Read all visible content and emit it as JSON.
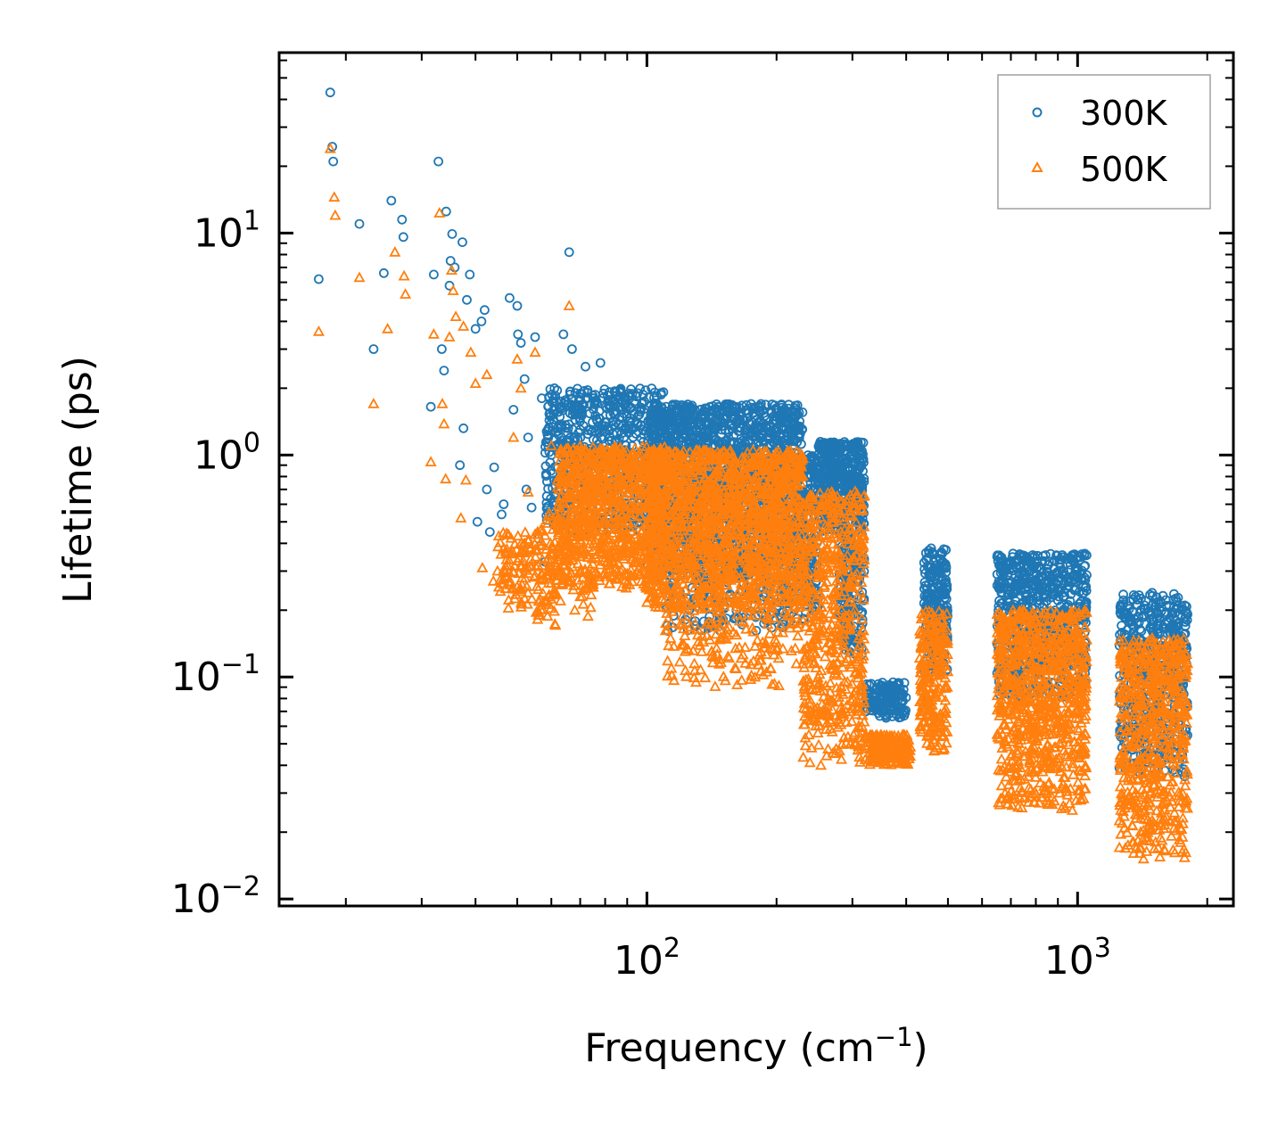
{
  "chart_data": {
    "type": "scatter",
    "xscale": "log",
    "yscale": "log",
    "xlabel": "Frequency (cm",
    "xlabel_sup": "−1",
    "xlabel_end": ")",
    "ylabel": "Lifetime (ps)",
    "xlim": [
      14,
      2300
    ],
    "ylim": [
      0.0093,
      65
    ],
    "x_ticks": [
      {
        "value": 100,
        "base": "10",
        "exp": "2"
      },
      {
        "value": 1000,
        "base": "10",
        "exp": "3"
      }
    ],
    "y_ticks": [
      {
        "value": 0.01,
        "base": "10",
        "exp": "−2"
      },
      {
        "value": 0.1,
        "base": "10",
        "exp": "−1"
      },
      {
        "value": 1,
        "base": "10",
        "exp": "0"
      },
      {
        "value": 10,
        "base": "10",
        "exp": "1"
      }
    ],
    "legend": {
      "position": "top-right"
    },
    "series": [
      {
        "name": "300K",
        "marker": "circle",
        "color": "#1f77b4",
        "points": [
          [
            17.3,
            6.2
          ],
          [
            18.4,
            43
          ],
          [
            18.6,
            24.5
          ],
          [
            18.7,
            21
          ],
          [
            21.5,
            11
          ],
          [
            23.2,
            3.0
          ],
          [
            24.5,
            6.6
          ],
          [
            25.5,
            14
          ],
          [
            27,
            11.5
          ],
          [
            27.2,
            9.6
          ],
          [
            31.5,
            1.65
          ],
          [
            32,
            6.5
          ],
          [
            32.8,
            21
          ],
          [
            33.4,
            3.0
          ],
          [
            33.8,
            2.4
          ],
          [
            34.2,
            12.5
          ],
          [
            34.8,
            5.8
          ],
          [
            35,
            7.5
          ],
          [
            35.3,
            9.9
          ],
          [
            35.8,
            7.0
          ],
          [
            36.8,
            0.9
          ],
          [
            37.3,
            9.1
          ],
          [
            37.5,
            1.32
          ],
          [
            38.2,
            5.0
          ],
          [
            38.8,
            6.5
          ],
          [
            40,
            3.7
          ],
          [
            40.4,
            0.5
          ],
          [
            41.3,
            4.0
          ],
          [
            42,
            4.5
          ],
          [
            42.5,
            0.7
          ],
          [
            43.2,
            0.45
          ],
          [
            44.2,
            0.88
          ],
          [
            46,
            0.54
          ],
          [
            46.5,
            0.6
          ],
          [
            48,
            5.1
          ],
          [
            49,
            1.6
          ],
          [
            50,
            4.7
          ],
          [
            50.2,
            3.5
          ],
          [
            51,
            3.2
          ],
          [
            52,
            2.2
          ],
          [
            52.5,
            0.7
          ],
          [
            53,
            1.2
          ],
          [
            54,
            0.58
          ],
          [
            55,
            3.4
          ],
          [
            56,
            0.42
          ],
          [
            57,
            1.8
          ],
          [
            58,
            0.33
          ],
          [
            59,
            0.55
          ],
          [
            60,
            1.0
          ],
          [
            61,
            2.0
          ],
          [
            63,
            1.35
          ],
          [
            64,
            3.5
          ],
          [
            65,
            1.1
          ],
          [
            66,
            8.2
          ],
          [
            67,
            3.0
          ],
          [
            68,
            1.6
          ],
          [
            70,
            1.3
          ],
          [
            72,
            2.5
          ],
          [
            75,
            1.8
          ],
          [
            78,
            2.6
          ]
        ],
        "clusters": [
          {
            "xmin": 58,
            "xmax": 110,
            "ymin": 0.45,
            "ymax": 2.0,
            "count": 700
          },
          {
            "xmin": 100,
            "xmax": 230,
            "ymin": 0.3,
            "ymax": 1.7,
            "count": 1600
          },
          {
            "xmin": 110,
            "xmax": 230,
            "ymin": 0.16,
            "ymax": 0.35,
            "count": 260
          },
          {
            "xmin": 230,
            "xmax": 250,
            "ymin": 0.18,
            "ymax": 1.0,
            "count": 160
          },
          {
            "xmin": 250,
            "xmax": 320,
            "ymin": 0.45,
            "ymax": 1.15,
            "count": 450
          },
          {
            "xmin": 280,
            "xmax": 320,
            "ymin": 0.12,
            "ymax": 0.45,
            "count": 150
          },
          {
            "xmin": 320,
            "xmax": 400,
            "ymin": 0.065,
            "ymax": 0.095,
            "count": 160
          },
          {
            "xmin": 440,
            "xmax": 500,
            "ymin": 0.1,
            "ymax": 0.38,
            "count": 220
          },
          {
            "xmin": 650,
            "xmax": 1050,
            "ymin": 0.08,
            "ymax": 0.36,
            "count": 700
          },
          {
            "xmin": 1250,
            "xmax": 1800,
            "ymin": 0.035,
            "ymax": 0.24,
            "count": 520
          }
        ]
      },
      {
        "name": "500K",
        "marker": "triangle",
        "color": "#ff7f0e",
        "points": [
          [
            17.3,
            3.6
          ],
          [
            18.4,
            24
          ],
          [
            18.8,
            14.5
          ],
          [
            18.9,
            12
          ],
          [
            21.5,
            6.3
          ],
          [
            23.2,
            1.7
          ],
          [
            25,
            3.7
          ],
          [
            26,
            8.2
          ],
          [
            27.3,
            6.4
          ],
          [
            27.5,
            5.3
          ],
          [
            31.5,
            0.93
          ],
          [
            32,
            3.5
          ],
          [
            33,
            12.3
          ],
          [
            33.5,
            1.7
          ],
          [
            33.8,
            1.38
          ],
          [
            34.1,
            0.78
          ],
          [
            34.8,
            3.4
          ],
          [
            35.2,
            6.8
          ],
          [
            35.5,
            5.5
          ],
          [
            36,
            4.2
          ],
          [
            37,
            0.52
          ],
          [
            37.5,
            3.8
          ],
          [
            38,
            0.77
          ],
          [
            39,
            2.9
          ],
          [
            40,
            2.1
          ],
          [
            41.5,
            0.31
          ],
          [
            42.5,
            2.3
          ],
          [
            44,
            0.27
          ],
          [
            45,
            0.3
          ],
          [
            47,
            0.25
          ],
          [
            49,
            1.2
          ],
          [
            50,
            2.7
          ],
          [
            51,
            2.0
          ],
          [
            52,
            0.4
          ],
          [
            53,
            0.68
          ],
          [
            55,
            2.9
          ],
          [
            56,
            0.19
          ],
          [
            58,
            0.22
          ],
          [
            60,
            1.1
          ],
          [
            63,
            0.22
          ],
          [
            66,
            4.7
          ],
          [
            68,
            0.2
          ],
          [
            70,
            0.23
          ],
          [
            72,
            0.25
          ],
          [
            75,
            0.27
          ]
        ],
        "clusters": [
          {
            "xmin": 45,
            "xmax": 62,
            "ymin": 0.2,
            "ymax": 0.45,
            "count": 130
          },
          {
            "xmin": 55,
            "xmax": 75,
            "ymin": 0.17,
            "ymax": 0.55,
            "count": 110
          },
          {
            "xmin": 62,
            "xmax": 110,
            "ymin": 0.25,
            "ymax": 1.1,
            "count": 850
          },
          {
            "xmin": 100,
            "xmax": 230,
            "ymin": 0.2,
            "ymax": 1.05,
            "count": 1500
          },
          {
            "xmin": 110,
            "xmax": 230,
            "ymin": 0.09,
            "ymax": 0.22,
            "count": 180
          },
          {
            "xmin": 230,
            "xmax": 320,
            "ymin": 0.04,
            "ymax": 0.7,
            "count": 550
          },
          {
            "xmin": 320,
            "xmax": 410,
            "ymin": 0.04,
            "ymax": 0.055,
            "count": 200
          },
          {
            "xmin": 430,
            "xmax": 500,
            "ymin": 0.045,
            "ymax": 0.2,
            "count": 230
          },
          {
            "xmin": 650,
            "xmax": 1050,
            "ymin": 0.025,
            "ymax": 0.2,
            "count": 850
          },
          {
            "xmin": 1250,
            "xmax": 1800,
            "ymin": 0.015,
            "ymax": 0.15,
            "count": 600
          }
        ]
      }
    ]
  }
}
